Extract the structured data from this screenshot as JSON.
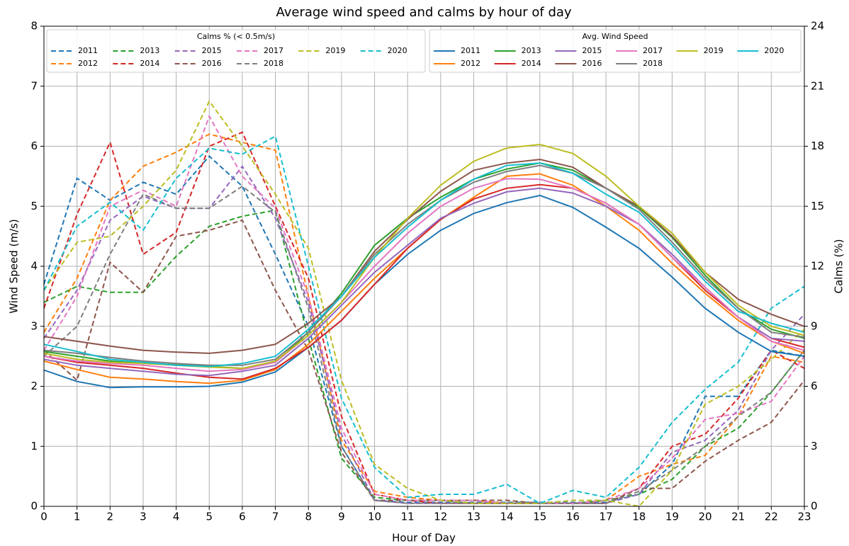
{
  "chart_data": {
    "type": "line",
    "title": "Average wind speed and calms by hour of day",
    "xlabel": "Hour of Day",
    "ylabel": "Wind Speed (m/s)",
    "y2label": "Calms (%)",
    "x": [
      0,
      1,
      2,
      3,
      4,
      5,
      6,
      7,
      8,
      9,
      10,
      11,
      12,
      13,
      14,
      15,
      16,
      17,
      18,
      19,
      20,
      21,
      22,
      23
    ],
    "xlim": [
      0,
      23
    ],
    "xticks": [
      0,
      1,
      2,
      3,
      4,
      5,
      6,
      7,
      8,
      9,
      10,
      11,
      12,
      13,
      14,
      15,
      16,
      17,
      18,
      19,
      20,
      21,
      22,
      23
    ],
    "ylim": [
      0,
      8
    ],
    "yticks": [
      0,
      1,
      2,
      3,
      4,
      5,
      6,
      7,
      8
    ],
    "y2lim": [
      0,
      24
    ],
    "y2ticks": [
      0,
      3,
      6,
      9,
      12,
      15,
      18,
      21,
      24
    ],
    "grid": true,
    "legends": [
      {
        "title": "Calms % (< 0.5m/s)",
        "axis": "y2"
      },
      {
        "title": "Avg. Wind Speed",
        "axis": "y"
      }
    ],
    "series": [
      {
        "name": "2011",
        "color": "#1f77b4",
        "style": "dashed",
        "axis": "y2",
        "values": [
          11.1,
          16.4,
          15.3,
          16.2,
          15.6,
          17.5,
          16.0,
          12.6,
          9.0,
          3.0,
          0.3,
          0.2,
          0.2,
          0.2,
          0.2,
          0.2,
          0.2,
          0.2,
          0.6,
          2.1,
          5.5,
          5.5,
          7.8,
          7.5
        ]
      },
      {
        "name": "2012",
        "color": "#ff7f0e",
        "style": "dashed",
        "axis": "y2",
        "values": [
          8.7,
          11.4,
          15.3,
          17.0,
          17.7,
          18.6,
          18.2,
          17.8,
          10.5,
          3.3,
          0.75,
          0.45,
          0.3,
          0.3,
          0.15,
          0.15,
          0.15,
          0.3,
          1.5,
          2.1,
          2.55,
          4.5,
          7.5,
          7.2
        ]
      },
      {
        "name": "2013",
        "color": "#2ca02c",
        "style": "dashed",
        "axis": "y2",
        "values": [
          10.2,
          11.0,
          10.7,
          10.7,
          12.5,
          14.0,
          14.5,
          14.8,
          8.4,
          2.4,
          0.45,
          0.3,
          0.3,
          0.15,
          0.15,
          0.15,
          0.15,
          0.3,
          0.6,
          1.35,
          3.0,
          3.9,
          5.7,
          7.8
        ]
      },
      {
        "name": "2014",
        "color": "#d62728",
        "style": "dashed",
        "axis": "y2",
        "values": [
          9.9,
          14.6,
          18.2,
          12.6,
          13.7,
          18.0,
          18.7,
          15.0,
          11.4,
          4.5,
          0.6,
          0.3,
          0.15,
          0.15,
          0.15,
          0.15,
          0.15,
          0.15,
          0.9,
          3.0,
          3.6,
          5.4,
          7.8,
          6.9
        ]
      },
      {
        "name": "2015",
        "color": "#9467bd",
        "style": "dashed",
        "axis": "y2",
        "values": [
          8.4,
          10.8,
          14.3,
          15.5,
          14.9,
          14.9,
          17.0,
          14.4,
          10.2,
          3.6,
          0.3,
          0.15,
          0.15,
          0.15,
          0.15,
          0.15,
          0.15,
          0.15,
          0.6,
          2.7,
          3.3,
          4.8,
          7.8,
          9.6
        ]
      },
      {
        "name": "2016",
        "color": "#8c564b",
        "style": "dashed",
        "axis": "y2",
        "values": [
          7.8,
          6.3,
          12.2,
          10.7,
          13.5,
          13.8,
          14.3,
          10.8,
          7.8,
          2.7,
          0.3,
          0.3,
          0.3,
          0.3,
          0.3,
          0.15,
          0.15,
          0.15,
          0.9,
          0.9,
          2.25,
          3.3,
          4.2,
          6.3
        ]
      },
      {
        "name": "2017",
        "color": "#e377c2",
        "style": "dashed",
        "axis": "y2",
        "values": [
          7.8,
          10.5,
          15.0,
          15.8,
          15.0,
          19.5,
          16.5,
          14.9,
          10.5,
          3.9,
          0.6,
          0.3,
          0.3,
          0.3,
          0.15,
          0.15,
          0.15,
          0.3,
          0.9,
          2.4,
          4.35,
          4.65,
          5.25,
          7.5
        ]
      },
      {
        "name": "2018",
        "color": "#7f7f7f",
        "style": "dashed",
        "axis": "y2",
        "values": [
          7.5,
          9.0,
          12.6,
          15.6,
          14.9,
          14.9,
          16.0,
          14.7,
          9.9,
          3.0,
          0.3,
          0.15,
          0.15,
          0.15,
          0.15,
          0.15,
          0.15,
          0.15,
          0.75,
          1.8,
          3.0,
          4.5,
          5.7,
          7.8
        ]
      },
      {
        "name": "2019",
        "color": "#bcbd22",
        "style": "dashed",
        "axis": "y2",
        "values": [
          10.8,
          13.2,
          13.5,
          15.0,
          16.8,
          20.25,
          18.0,
          15.6,
          12.9,
          6.3,
          2.1,
          0.9,
          0.3,
          0.15,
          0.15,
          0.15,
          0.3,
          0.3,
          0.0,
          1.8,
          5.1,
          6.0,
          7.35,
          8.85
        ]
      },
      {
        "name": "2020",
        "color": "#17becf",
        "style": "dashed",
        "axis": "y2",
        "values": [
          10.8,
          14.0,
          15.2,
          13.8,
          16.4,
          17.9,
          17.6,
          18.5,
          12.0,
          5.4,
          1.95,
          0.45,
          0.6,
          0.6,
          1.1,
          0.15,
          0.8,
          0.45,
          1.95,
          4.2,
          5.85,
          7.2,
          9.9,
          11.0
        ]
      },
      {
        "name": "2011",
        "color": "#1f77b4",
        "style": "solid",
        "axis": "y",
        "values": [
          2.27,
          2.08,
          1.98,
          1.99,
          1.99,
          2.0,
          2.07,
          2.24,
          2.65,
          3.1,
          3.7,
          4.2,
          4.6,
          4.88,
          5.06,
          5.18,
          4.98,
          4.65,
          4.3,
          3.82,
          3.3,
          2.9,
          2.58,
          2.5
        ]
      },
      {
        "name": "2012",
        "color": "#ff7f0e",
        "style": "solid",
        "axis": "y",
        "values": [
          2.42,
          2.28,
          2.15,
          2.12,
          2.08,
          2.05,
          2.1,
          2.28,
          2.7,
          3.25,
          3.8,
          4.3,
          4.78,
          5.15,
          5.5,
          5.54,
          5.35,
          5.0,
          4.6,
          4.05,
          3.55,
          3.1,
          2.75,
          2.55
        ]
      },
      {
        "name": "2013",
        "color": "#2ca02c",
        "style": "solid",
        "axis": "y",
        "values": [
          2.58,
          2.5,
          2.42,
          2.38,
          2.36,
          2.33,
          2.3,
          2.4,
          2.9,
          3.55,
          4.35,
          4.8,
          5.15,
          5.45,
          5.62,
          5.72,
          5.6,
          5.3,
          4.98,
          4.48,
          3.85,
          3.3,
          2.95,
          2.8
        ]
      },
      {
        "name": "2014",
        "color": "#d62728",
        "style": "solid",
        "axis": "y",
        "values": [
          2.5,
          2.4,
          2.35,
          2.3,
          2.22,
          2.15,
          2.12,
          2.3,
          2.65,
          3.1,
          3.7,
          4.3,
          4.78,
          5.12,
          5.3,
          5.36,
          5.3,
          5.05,
          4.7,
          4.15,
          3.6,
          3.15,
          2.8,
          2.65
        ]
      },
      {
        "name": "2015",
        "color": "#9467bd",
        "style": "solid",
        "axis": "y",
        "values": [
          2.45,
          2.35,
          2.3,
          2.25,
          2.2,
          2.18,
          2.25,
          2.35,
          2.8,
          3.35,
          3.9,
          4.35,
          4.8,
          5.05,
          5.24,
          5.3,
          5.22,
          5.0,
          4.7,
          4.2,
          3.65,
          3.15,
          2.8,
          2.75
        ]
      },
      {
        "name": "2016",
        "color": "#8c564b",
        "style": "solid",
        "axis": "y",
        "values": [
          2.83,
          2.75,
          2.67,
          2.6,
          2.57,
          2.55,
          2.6,
          2.7,
          3.05,
          3.5,
          4.25,
          4.78,
          5.25,
          5.6,
          5.72,
          5.78,
          5.65,
          5.3,
          5.0,
          4.5,
          3.9,
          3.45,
          3.2,
          3.0
        ]
      },
      {
        "name": "2017",
        "color": "#e377c2",
        "style": "solid",
        "axis": "y",
        "values": [
          2.5,
          2.42,
          2.38,
          2.35,
          2.3,
          2.25,
          2.28,
          2.4,
          2.85,
          3.4,
          4.0,
          4.55,
          5.0,
          5.3,
          5.46,
          5.45,
          5.3,
          5.05,
          4.7,
          4.15,
          3.65,
          3.15,
          2.75,
          2.6
        ]
      },
      {
        "name": "2018",
        "color": "#7f7f7f",
        "style": "solid",
        "axis": "y",
        "values": [
          2.6,
          2.55,
          2.48,
          2.42,
          2.38,
          2.35,
          2.35,
          2.45,
          2.9,
          3.5,
          4.2,
          4.7,
          5.1,
          5.4,
          5.58,
          5.68,
          5.55,
          5.3,
          4.95,
          4.4,
          3.8,
          3.3,
          2.9,
          2.82
        ]
      },
      {
        "name": "2019",
        "color": "#bcbd22",
        "style": "solid",
        "axis": "y",
        "values": [
          2.55,
          2.45,
          2.4,
          2.38,
          2.35,
          2.32,
          2.3,
          2.42,
          2.85,
          3.4,
          4.15,
          4.8,
          5.35,
          5.75,
          5.97,
          6.03,
          5.88,
          5.5,
          5.0,
          4.55,
          3.9,
          3.35,
          3.0,
          2.85
        ]
      },
      {
        "name": "2020",
        "color": "#17becf",
        "style": "solid",
        "axis": "y",
        "values": [
          2.7,
          2.58,
          2.45,
          2.4,
          2.35,
          2.33,
          2.38,
          2.5,
          2.95,
          3.5,
          4.15,
          4.65,
          5.1,
          5.45,
          5.68,
          5.72,
          5.55,
          5.2,
          4.9,
          4.35,
          3.75,
          3.25,
          3.05,
          2.9
        ]
      }
    ]
  }
}
